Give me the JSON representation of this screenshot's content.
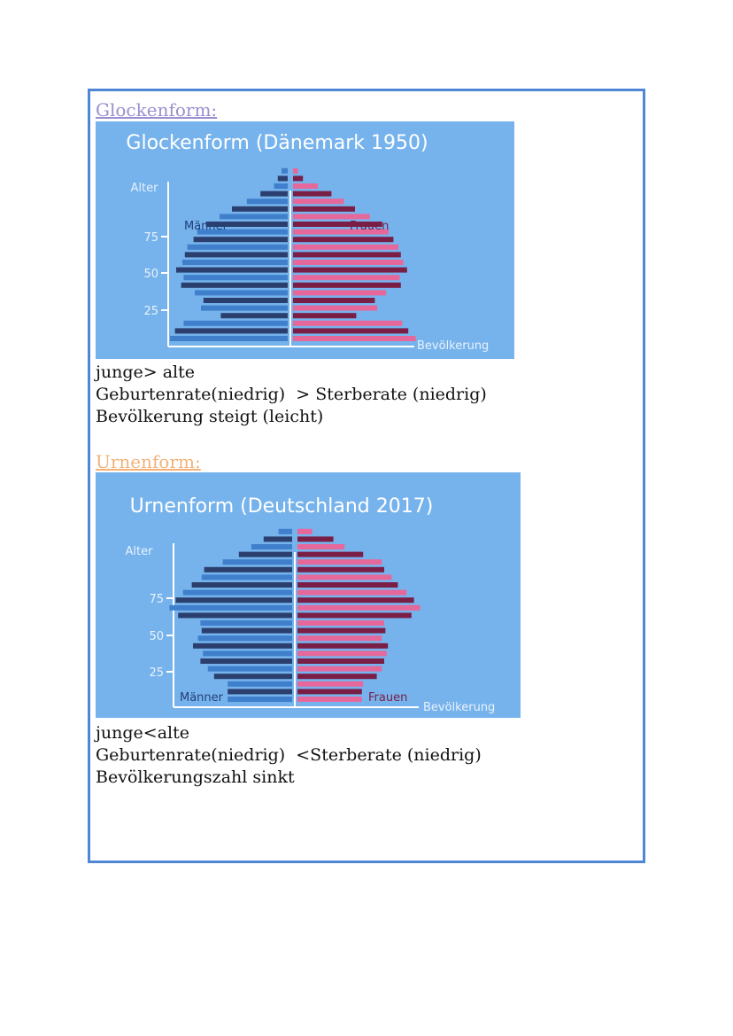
{
  "sections": [
    {
      "heading": "Glockenform:",
      "notes": [
        "junge> alte",
        "Geburtenrate(niedrig)  > Sterberate (niedrig)",
        "Bevölkerung steigt (leicht)"
      ]
    },
    {
      "heading": "Urnenform:",
      "notes": [
        "junge<alte",
        "Geburtenrate(niedrig)  <Sterberate (niedrig)",
        "Bevölkerungszahl sinkt"
      ]
    }
  ],
  "chart_data": [
    {
      "type": "bar",
      "title": "Glockenform (Dänemark 1950)",
      "ylabel": "Alter",
      "xlabel": "Bevölkerung",
      "y_ticks": [
        "75",
        "50",
        "25"
      ],
      "series": [
        {
          "name": "Männer",
          "values": [
            0.95,
            0.91,
            0.84,
            0.54,
            0.7,
            0.68,
            0.75,
            0.86,
            0.84,
            0.9,
            0.85,
            0.83,
            0.81,
            0.76,
            0.73,
            0.66,
            0.55,
            0.45,
            0.33,
            0.22,
            0.11,
            0.08,
            0.05
          ]
        },
        {
          "name": "Frauen",
          "values": [
            0.99,
            0.93,
            0.88,
            0.51,
            0.68,
            0.66,
            0.75,
            0.87,
            0.86,
            0.92,
            0.89,
            0.87,
            0.85,
            0.81,
            0.77,
            0.72,
            0.62,
            0.5,
            0.41,
            0.31,
            0.2,
            0.08,
            0.04
          ]
        }
      ],
      "colors": {
        "background": "#76b3ec",
        "male_light": "#3f7fcb",
        "male_dark": "#2a3f6e",
        "female_light": "#e6689a",
        "female_dark": "#7a1e46"
      }
    },
    {
      "type": "bar",
      "title": "Urnenform (Deutschland 2017)",
      "ylabel": "Alter",
      "xlabel": "Bevölkerung",
      "y_ticks": [
        "75",
        "50",
        "25"
      ],
      "series": [
        {
          "name": "Männer",
          "values": [
            0.52,
            0.52,
            0.52,
            0.63,
            0.68,
            0.74,
            0.72,
            0.8,
            0.76,
            0.73,
            0.74,
            0.92,
            0.99,
            0.94,
            0.88,
            0.81,
            0.73,
            0.71,
            0.56,
            0.43,
            0.33,
            0.23,
            0.11
          ]
        },
        {
          "name": "Frauen",
          "values": [
            0.52,
            0.52,
            0.53,
            0.64,
            0.68,
            0.7,
            0.72,
            0.73,
            0.68,
            0.71,
            0.7,
            0.92,
            0.99,
            0.94,
            0.88,
            0.81,
            0.76,
            0.7,
            0.68,
            0.53,
            0.38,
            0.29,
            0.12
          ]
        }
      ],
      "colors": {
        "background": "#76b3ec",
        "male_light": "#3f7fcb",
        "male_dark": "#2a3f6e",
        "female_light": "#e6689a",
        "female_dark": "#7a1e46"
      }
    }
  ]
}
